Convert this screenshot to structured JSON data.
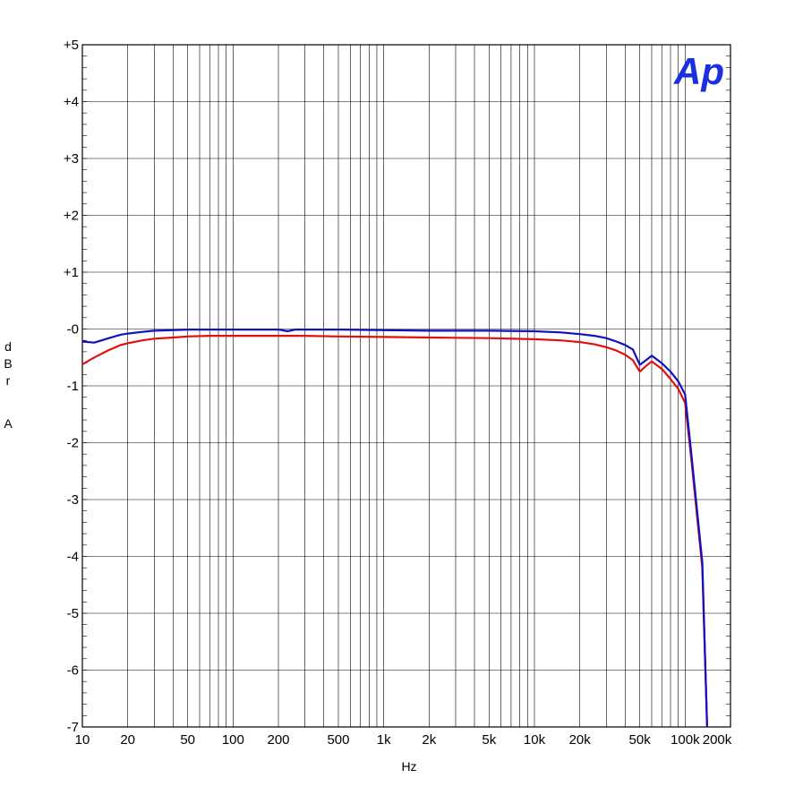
{
  "chart_data": {
    "type": "line",
    "xlabel": "Hz",
    "ylabel_letters": [
      "d",
      "B",
      "r",
      "",
      "A"
    ],
    "x_scale": "log",
    "xlim": [
      10,
      200000
    ],
    "ylim": [
      -7,
      5
    ],
    "grid": true,
    "x_tick_labels": [
      {
        "value": 10,
        "label": "10"
      },
      {
        "value": 20,
        "label": "20"
      },
      {
        "value": 50,
        "label": "50"
      },
      {
        "value": 100,
        "label": "100"
      },
      {
        "value": 200,
        "label": "200"
      },
      {
        "value": 500,
        "label": "500"
      },
      {
        "value": 1000,
        "label": "1k"
      },
      {
        "value": 2000,
        "label": "2k"
      },
      {
        "value": 5000,
        "label": "5k"
      },
      {
        "value": 10000,
        "label": "10k"
      },
      {
        "value": 20000,
        "label": "20k"
      },
      {
        "value": 50000,
        "label": "50k"
      },
      {
        "value": 100000,
        "label": "100k"
      },
      {
        "value": 200000,
        "label": "200k"
      }
    ],
    "y_tick_labels": [
      {
        "value": 5,
        "label": "+5"
      },
      {
        "value": 4,
        "label": "+4"
      },
      {
        "value": 3,
        "label": "+3"
      },
      {
        "value": 2,
        "label": "+2"
      },
      {
        "value": 1,
        "label": "+1"
      },
      {
        "value": 0,
        "label": "-0"
      },
      {
        "value": -1,
        "label": "-1"
      },
      {
        "value": -2,
        "label": "-2"
      },
      {
        "value": -3,
        "label": "-3"
      },
      {
        "value": -4,
        "label": "-4"
      },
      {
        "value": -5,
        "label": "-5"
      },
      {
        "value": -6,
        "label": "-6"
      },
      {
        "value": -7,
        "label": "-7"
      }
    ],
    "logo_text": "Ap",
    "logo_color": "#1a2fe0",
    "series": [
      {
        "color": "#1010c0",
        "x": [
          10,
          12,
          15,
          18,
          20,
          25,
          30,
          40,
          50,
          70,
          100,
          150,
          200,
          230,
          260,
          300,
          500,
          1000,
          2000,
          5000,
          10000,
          15000,
          20000,
          25000,
          30000,
          35000,
          40000,
          45000,
          50000,
          55000,
          60000,
          70000,
          80000,
          90000,
          100000,
          110000,
          130000,
          140000
        ],
        "y": [
          -0.22,
          -0.24,
          -0.16,
          -0.1,
          -0.08,
          -0.05,
          -0.03,
          -0.02,
          -0.01,
          -0.01,
          -0.01,
          -0.01,
          -0.01,
          -0.04,
          -0.01,
          -0.01,
          -0.01,
          -0.02,
          -0.03,
          -0.03,
          -0.04,
          -0.06,
          -0.09,
          -0.12,
          -0.16,
          -0.22,
          -0.28,
          -0.36,
          -0.63,
          -0.55,
          -0.47,
          -0.6,
          -0.75,
          -0.92,
          -1.15,
          -2.2,
          -4.1,
          -7.0
        ]
      },
      {
        "color": "#e01010",
        "x": [
          10,
          12,
          15,
          18,
          20,
          25,
          30,
          40,
          50,
          70,
          100,
          200,
          300,
          500,
          1000,
          2000,
          5000,
          10000,
          15000,
          20000,
          25000,
          30000,
          35000,
          40000,
          45000,
          50000,
          55000,
          60000,
          70000,
          80000,
          90000,
          100000,
          110000,
          130000,
          140000
        ],
        "y": [
          -0.62,
          -0.5,
          -0.37,
          -0.28,
          -0.25,
          -0.2,
          -0.17,
          -0.15,
          -0.13,
          -0.12,
          -0.12,
          -0.12,
          -0.12,
          -0.13,
          -0.14,
          -0.15,
          -0.16,
          -0.18,
          -0.2,
          -0.23,
          -0.27,
          -0.32,
          -0.38,
          -0.45,
          -0.55,
          -0.75,
          -0.65,
          -0.57,
          -0.7,
          -0.88,
          -1.05,
          -1.3,
          -2.3,
          -4.2,
          -7.0
        ]
      }
    ]
  }
}
